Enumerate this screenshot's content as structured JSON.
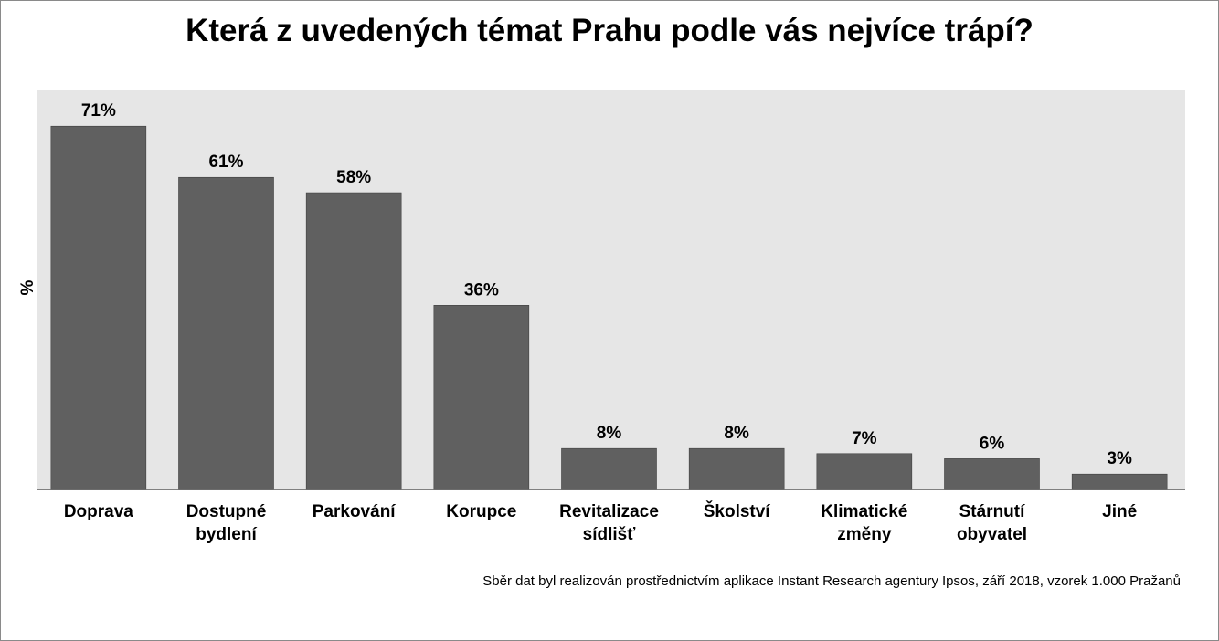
{
  "chart_data": {
    "type": "bar",
    "title": "Která z uvedených témat Prahu podle vás nejvíce trápí?",
    "ylabel": "%",
    "xlabel": "",
    "categories": [
      [
        "Doprava"
      ],
      [
        "Dostupné",
        "bydlení"
      ],
      [
        "Parkování"
      ],
      [
        "Korupce"
      ],
      [
        "Revitalizace",
        "sídlišť"
      ],
      [
        "Školství"
      ],
      [
        "Klimatické",
        "změny"
      ],
      [
        "Stárnutí",
        "obyvatel"
      ],
      [
        "Jiné"
      ]
    ],
    "values": [
      71,
      61,
      58,
      36,
      8,
      8,
      7,
      6,
      3
    ],
    "value_labels": [
      "71%",
      "61%",
      "58%",
      "36%",
      "8%",
      "8%",
      "7%",
      "6%",
      "3%"
    ],
    "ylim": [
      0,
      78
    ],
    "grid": false,
    "bar_color": "#606060",
    "background_color": "#e6e6e6"
  },
  "footnote": "Sběr dat byl realizován prostřednictvím aplikace Instant Research agentury Ipsos, září 2018, vzorek 1.000 Pražanů"
}
